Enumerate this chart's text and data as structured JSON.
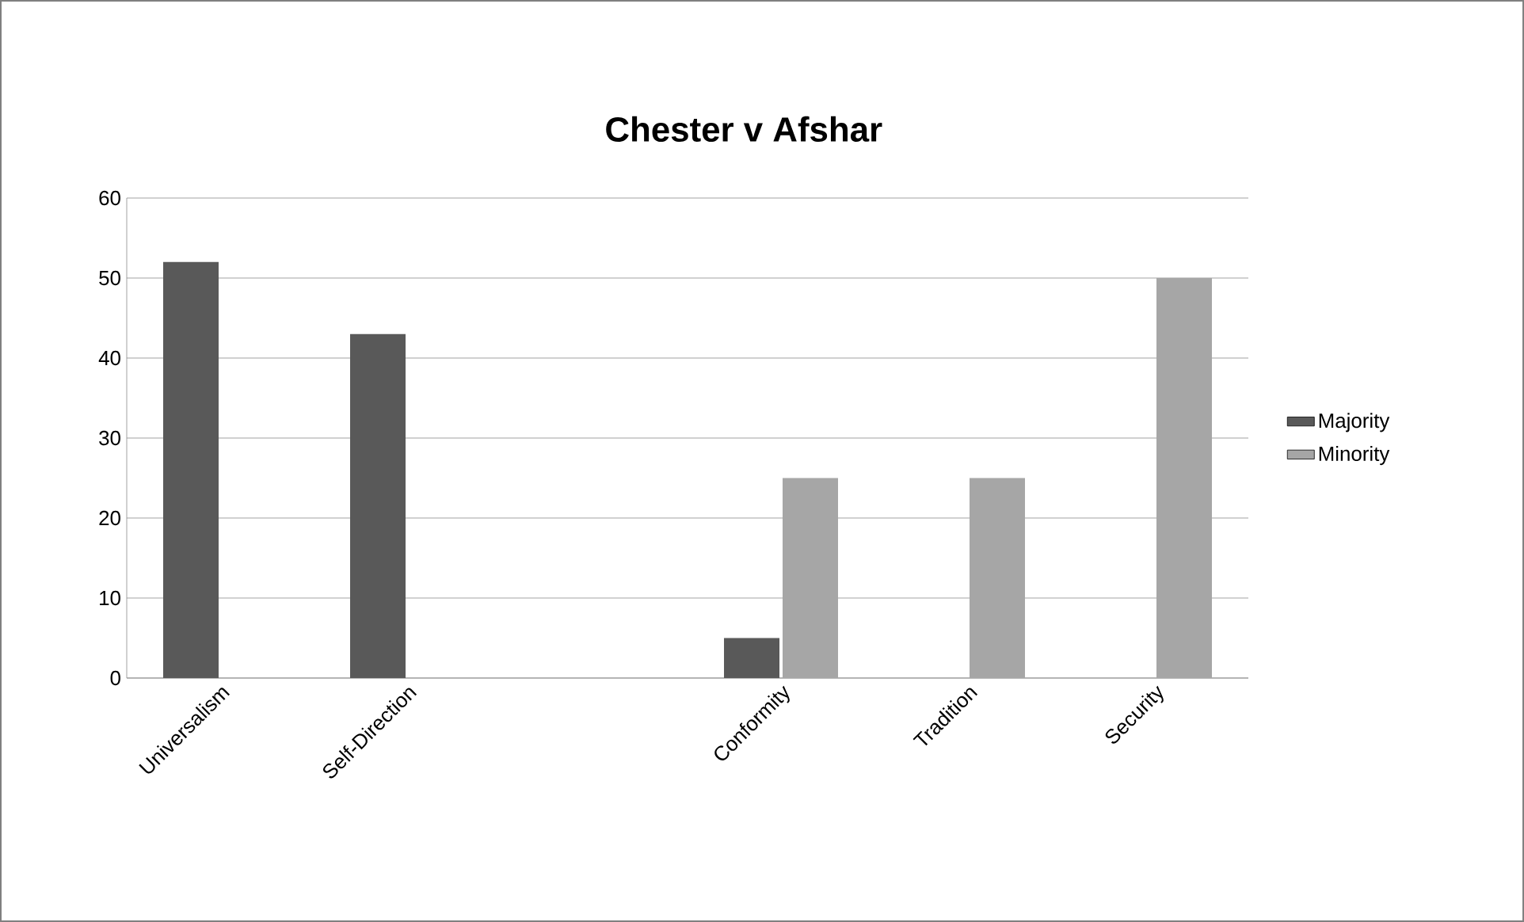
{
  "chart_data": {
    "type": "bar",
    "title": "Chester v Afshar",
    "categories": [
      "Universalism",
      "Self-Direction",
      null,
      "Conformity",
      "Tradition",
      "Security"
    ],
    "series": [
      {
        "name": "Majority",
        "color": "#595959",
        "values": [
          52,
          43,
          null,
          5,
          null,
          null
        ]
      },
      {
        "name": "Minority",
        "color": "#a6a6a6",
        "values": [
          null,
          null,
          null,
          25,
          25,
          50
        ]
      }
    ],
    "ylim": [
      0,
      60
    ],
    "yticks": [
      0,
      10,
      20,
      30,
      40,
      50,
      60
    ],
    "grid": "y",
    "legend": "right"
  }
}
